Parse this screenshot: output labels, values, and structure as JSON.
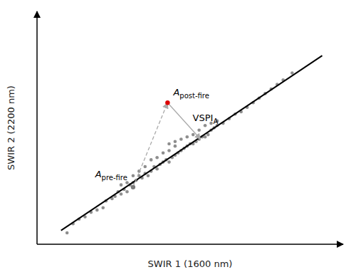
{
  "chart_data": {
    "type": "scatter",
    "x_label": "SWIR 1 (1600 nm)",
    "y_label": "SWIR 2 (2200 nm)",
    "xlim": [
      0.0,
      1.02
    ],
    "ylim": [
      0.0,
      1.02
    ],
    "xticks": [],
    "yticks": [],
    "tick_labels": false,
    "grid": false,
    "series": [
      {
        "type": "scatter",
        "color": "#7a7a7a",
        "x": [
          0.1,
          0.12,
          0.14,
          0.16,
          0.18,
          0.2,
          0.22,
          0.23,
          0.25,
          0.26,
          0.27,
          0.28,
          0.29,
          0.3,
          0.31,
          0.32,
          0.33,
          0.34,
          0.35,
          0.36,
          0.37,
          0.38,
          0.39,
          0.4,
          0.41,
          0.42,
          0.43,
          0.44,
          0.45,
          0.46,
          0.47,
          0.48,
          0.49,
          0.5,
          0.51,
          0.52,
          0.53,
          0.54,
          0.55,
          0.56,
          0.57,
          0.58,
          0.59,
          0.6,
          0.62,
          0.64,
          0.66,
          0.68,
          0.7,
          0.72,
          0.74,
          0.76,
          0.78,
          0.8,
          0.82,
          0.85,
          0.38,
          0.4,
          0.42,
          0.44,
          0.46,
          0.48,
          0.5,
          0.52,
          0.54,
          0.56,
          0.58,
          0.6,
          0.36,
          0.34,
          0.32,
          0.3,
          0.28,
          0.44,
          0.46
        ],
        "values": [
          0.05,
          0.09,
          0.11,
          0.12,
          0.14,
          0.15,
          0.16,
          0.19,
          0.2,
          0.21,
          0.23,
          0.22,
          0.24,
          0.23,
          0.26,
          0.27,
          0.28,
          0.3,
          0.29,
          0.31,
          0.3,
          0.32,
          0.34,
          0.33,
          0.35,
          0.36,
          0.37,
          0.36,
          0.38,
          0.39,
          0.4,
          0.41,
          0.42,
          0.43,
          0.44,
          0.44,
          0.45,
          0.46,
          0.47,
          0.47,
          0.48,
          0.5,
          0.51,
          0.52,
          0.53,
          0.55,
          0.57,
          0.58,
          0.6,
          0.62,
          0.64,
          0.66,
          0.68,
          0.7,
          0.72,
          0.75,
          0.37,
          0.38,
          0.4,
          0.41,
          0.43,
          0.46,
          0.47,
          0.48,
          0.5,
          0.52,
          0.53,
          0.54,
          0.34,
          0.32,
          0.3,
          0.27,
          0.26,
          0.44,
          0.45
        ]
      },
      {
        "type": "line",
        "color": "#000000",
        "x": [
          0.08,
          0.95
        ],
        "values": [
          0.0604,
          0.826
        ]
      }
    ],
    "annotations": [
      {
        "text": "A",
        "subscript": "pre-fire",
        "x": 0.32,
        "y": 0.25,
        "color": "#7a7a7a"
      },
      {
        "text": "A",
        "subscript": "post-fire",
        "x": 0.435,
        "y": 0.62,
        "color": "#dd0000"
      }
    ],
    "arrows": [
      {
        "from": [
          0.32,
          0.25
        ],
        "to": [
          0.435,
          0.62
        ],
        "line_style": "dashed",
        "color": "#aaaaaa"
      },
      {
        "from": [
          0.435,
          0.62
        ],
        "to": [
          0.545,
          0.46
        ],
        "line_style": "solid",
        "color": "#aaaaaa",
        "text": "VSPI",
        "subscript": "A"
      }
    ]
  }
}
